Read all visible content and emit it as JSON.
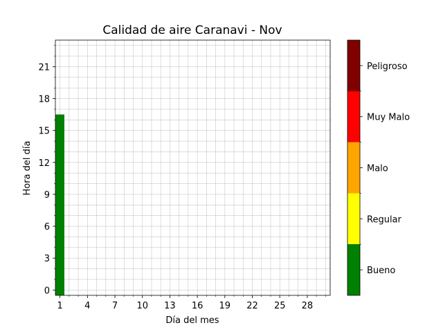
{
  "chart_data": {
    "type": "heatmap",
    "title": "Calidad de aire Caranavi - Nov",
    "xlabel": "Día del mes",
    "ylabel": "Hora del día",
    "xlim": [
      0.5,
      30.5
    ],
    "ylim": [
      -0.5,
      23.5
    ],
    "xticks": [
      1,
      4,
      7,
      10,
      13,
      16,
      19,
      22,
      25,
      28
    ],
    "yticks": [
      0,
      3,
      6,
      9,
      12,
      15,
      18,
      21
    ],
    "grid": true,
    "cells": [
      {
        "day": 1,
        "hour": 0,
        "category": "Bueno"
      },
      {
        "day": 1,
        "hour": 1,
        "category": "Bueno"
      },
      {
        "day": 1,
        "hour": 2,
        "category": "Bueno"
      },
      {
        "day": 1,
        "hour": 3,
        "category": "Bueno"
      },
      {
        "day": 1,
        "hour": 4,
        "category": "Bueno"
      },
      {
        "day": 1,
        "hour": 5,
        "category": "Bueno"
      },
      {
        "day": 1,
        "hour": 6,
        "category": "Bueno"
      },
      {
        "day": 1,
        "hour": 7,
        "category": "Bueno"
      },
      {
        "day": 1,
        "hour": 8,
        "category": "Bueno"
      },
      {
        "day": 1,
        "hour": 9,
        "category": "Bueno"
      },
      {
        "day": 1,
        "hour": 10,
        "category": "Bueno"
      },
      {
        "day": 1,
        "hour": 11,
        "category": "Bueno"
      },
      {
        "day": 1,
        "hour": 12,
        "category": "Bueno"
      },
      {
        "day": 1,
        "hour": 13,
        "category": "Bueno"
      },
      {
        "day": 1,
        "hour": 14,
        "category": "Bueno"
      },
      {
        "day": 1,
        "hour": 15,
        "category": "Bueno"
      },
      {
        "day": 1,
        "hour": 16,
        "category": "Bueno"
      }
    ],
    "colorbar": {
      "categories": [
        {
          "label": "Bueno",
          "color": "#008000"
        },
        {
          "label": "Regular",
          "color": "#ffff00"
        },
        {
          "label": "Malo",
          "color": "#ffa500"
        },
        {
          "label": "Muy Malo",
          "color": "#ff0000"
        },
        {
          "label": "Peligroso",
          "color": "#800000"
        }
      ]
    }
  }
}
